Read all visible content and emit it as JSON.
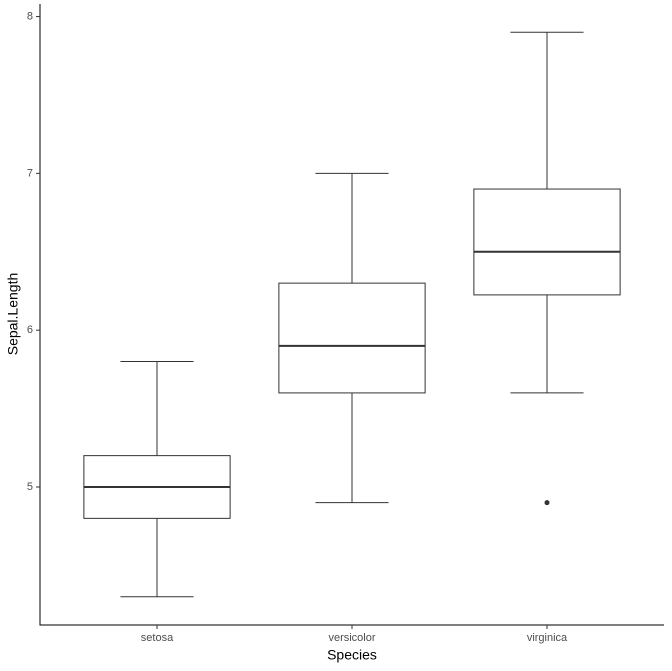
{
  "chart_data": {
    "type": "boxplot",
    "x_label": "Species",
    "y_label": "Sepal.Length",
    "categories": [
      "setosa",
      "versicolor",
      "virginica"
    ],
    "whisker_low": [
      4.3,
      4.9,
      5.6
    ],
    "q1": [
      4.8,
      5.6,
      6.225
    ],
    "median": [
      5.0,
      5.9,
      6.5
    ],
    "q3": [
      5.2,
      6.3,
      6.9
    ],
    "whisker_high": [
      5.8,
      7.0,
      7.9
    ],
    "outliers": [
      [],
      [],
      [
        4.9
      ]
    ],
    "color": "#333333",
    "ylim": [
      4.12,
      8.08
    ],
    "yticks": [
      5,
      6,
      7,
      8
    ],
    "grid": false
  }
}
